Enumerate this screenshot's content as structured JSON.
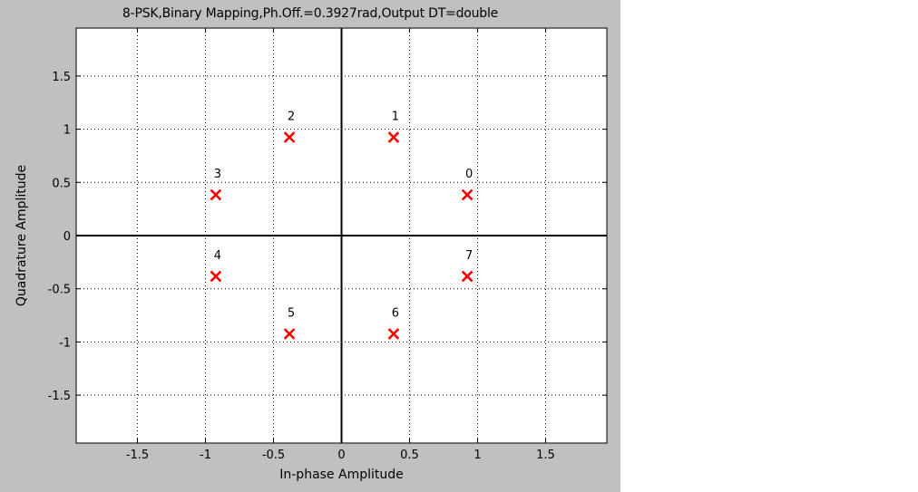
{
  "chart_data": {
    "type": "scatter",
    "title": "8-PSK,Binary Mapping,Ph.Off.=0.3927rad,Output DT=double",
    "xlabel": "In-phase Amplitude",
    "ylabel": "Quadrature Amplitude",
    "xlim": [
      -1.95,
      1.95
    ],
    "ylim": [
      -1.95,
      1.95
    ],
    "xticks": [
      -1.5,
      -1,
      -0.5,
      0,
      0.5,
      1,
      1.5
    ],
    "xtick_labels": [
      "-1.5",
      "-1",
      "-0.5",
      "0",
      "0.5",
      "1",
      "1.5"
    ],
    "yticks": [
      1.5,
      1,
      0.5,
      0,
      -0.5,
      -1,
      -1.5
    ],
    "ytick_labels": [
      "1.5",
      "1",
      "0.5",
      "0",
      "-0.5",
      "-1",
      "-1.5"
    ],
    "grid": true,
    "marker": "x",
    "marker_color": "#ff0000",
    "points": [
      {
        "label": "0",
        "x": 0.924,
        "y": 0.383
      },
      {
        "label": "1",
        "x": 0.383,
        "y": 0.924
      },
      {
        "label": "2",
        "x": -0.383,
        "y": 0.924
      },
      {
        "label": "3",
        "x": -0.924,
        "y": 0.383
      },
      {
        "label": "4",
        "x": -0.924,
        "y": -0.383
      },
      {
        "label": "5",
        "x": -0.383,
        "y": -0.924
      },
      {
        "label": "6",
        "x": 0.383,
        "y": -0.924
      },
      {
        "label": "7",
        "x": 0.924,
        "y": -0.383
      }
    ]
  },
  "colors": {
    "figure_background": "#c0c0c0",
    "axes_background": "#ffffff",
    "marker": "#ff0000"
  }
}
